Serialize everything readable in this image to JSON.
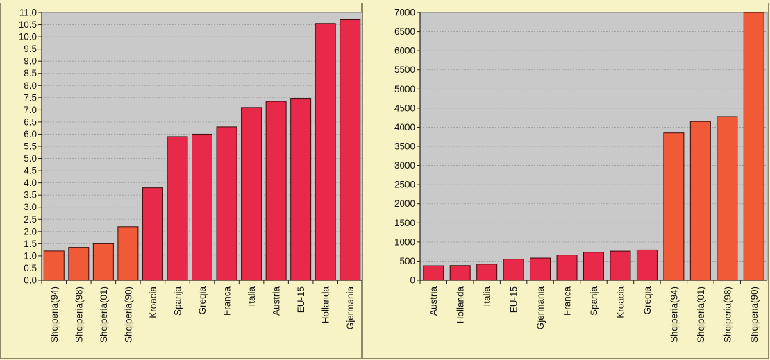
{
  "colors": {
    "page_background": "#f7f3c4",
    "plot_background": "#c9c9c9",
    "bar_red": "#e8294a",
    "bar_orange": "#f05a36",
    "bar_outline": "#3a0a0a",
    "gridline": "#9a9a9a"
  },
  "chart_data": [
    {
      "type": "bar",
      "categories": [
        "Shqiperia(94)",
        "Shqiperia(98)",
        "Shqiperia(01)",
        "Shqiperia(90)",
        "Kroacia",
        "Spanja",
        "Greqia",
        "Franca",
        "Italia",
        "Austria",
        "EU-15",
        "Hollanda",
        "Gjermania"
      ],
      "values": [
        1.2,
        1.35,
        1.5,
        2.2,
        3.8,
        5.9,
        6.0,
        6.3,
        7.1,
        7.35,
        7.45,
        10.55,
        10.7
      ],
      "bar_colors": [
        "#f05a36",
        "#f05a36",
        "#f05a36",
        "#f05a36",
        "#e8294a",
        "#e8294a",
        "#e8294a",
        "#e8294a",
        "#e8294a",
        "#e8294a",
        "#e8294a",
        "#e8294a",
        "#e8294a"
      ],
      "yticks": [
        "0.0",
        "0.5",
        "1.0",
        "1.5",
        "2.0",
        "2.5",
        "3.0",
        "3.5",
        "4.0",
        "4.5",
        "5.0",
        "5.5",
        "6.0",
        "6.5",
        "7.0",
        "7.5",
        "8.0",
        "8.5",
        "9.0",
        "9.5",
        "10.0",
        "10.5",
        "11.0"
      ],
      "ylim": [
        0,
        11
      ],
      "ystep": 0.5,
      "grid": true,
      "title": "",
      "xlabel": "",
      "ylabel": ""
    },
    {
      "type": "bar",
      "categories": [
        "Austria",
        "Hollanda",
        "Italia",
        "EU-15",
        "Gjermania",
        "Franca",
        "Spanja",
        "Kroacia",
        "Greqia",
        "Shqiperia(94)",
        "Shqiperia(01)",
        "Shqiperia(98)",
        "Shqiperia(90)"
      ],
      "values": [
        380,
        385,
        420,
        550,
        580,
        660,
        730,
        760,
        790,
        3850,
        4150,
        4280,
        7000
      ],
      "bar_colors": [
        "#e8294a",
        "#e8294a",
        "#e8294a",
        "#e8294a",
        "#e8294a",
        "#e8294a",
        "#e8294a",
        "#e8294a",
        "#e8294a",
        "#f05a36",
        "#f05a36",
        "#f05a36",
        "#f05a36"
      ],
      "yticks": [
        "0",
        "500",
        "1000",
        "1500",
        "2000",
        "2500",
        "3000",
        "3500",
        "4000",
        "4500",
        "5000",
        "5500",
        "6000",
        "6500",
        "7000"
      ],
      "ylim": [
        0,
        7000
      ],
      "ystep": 500,
      "grid": true,
      "title": "",
      "xlabel": "",
      "ylabel": ""
    }
  ]
}
